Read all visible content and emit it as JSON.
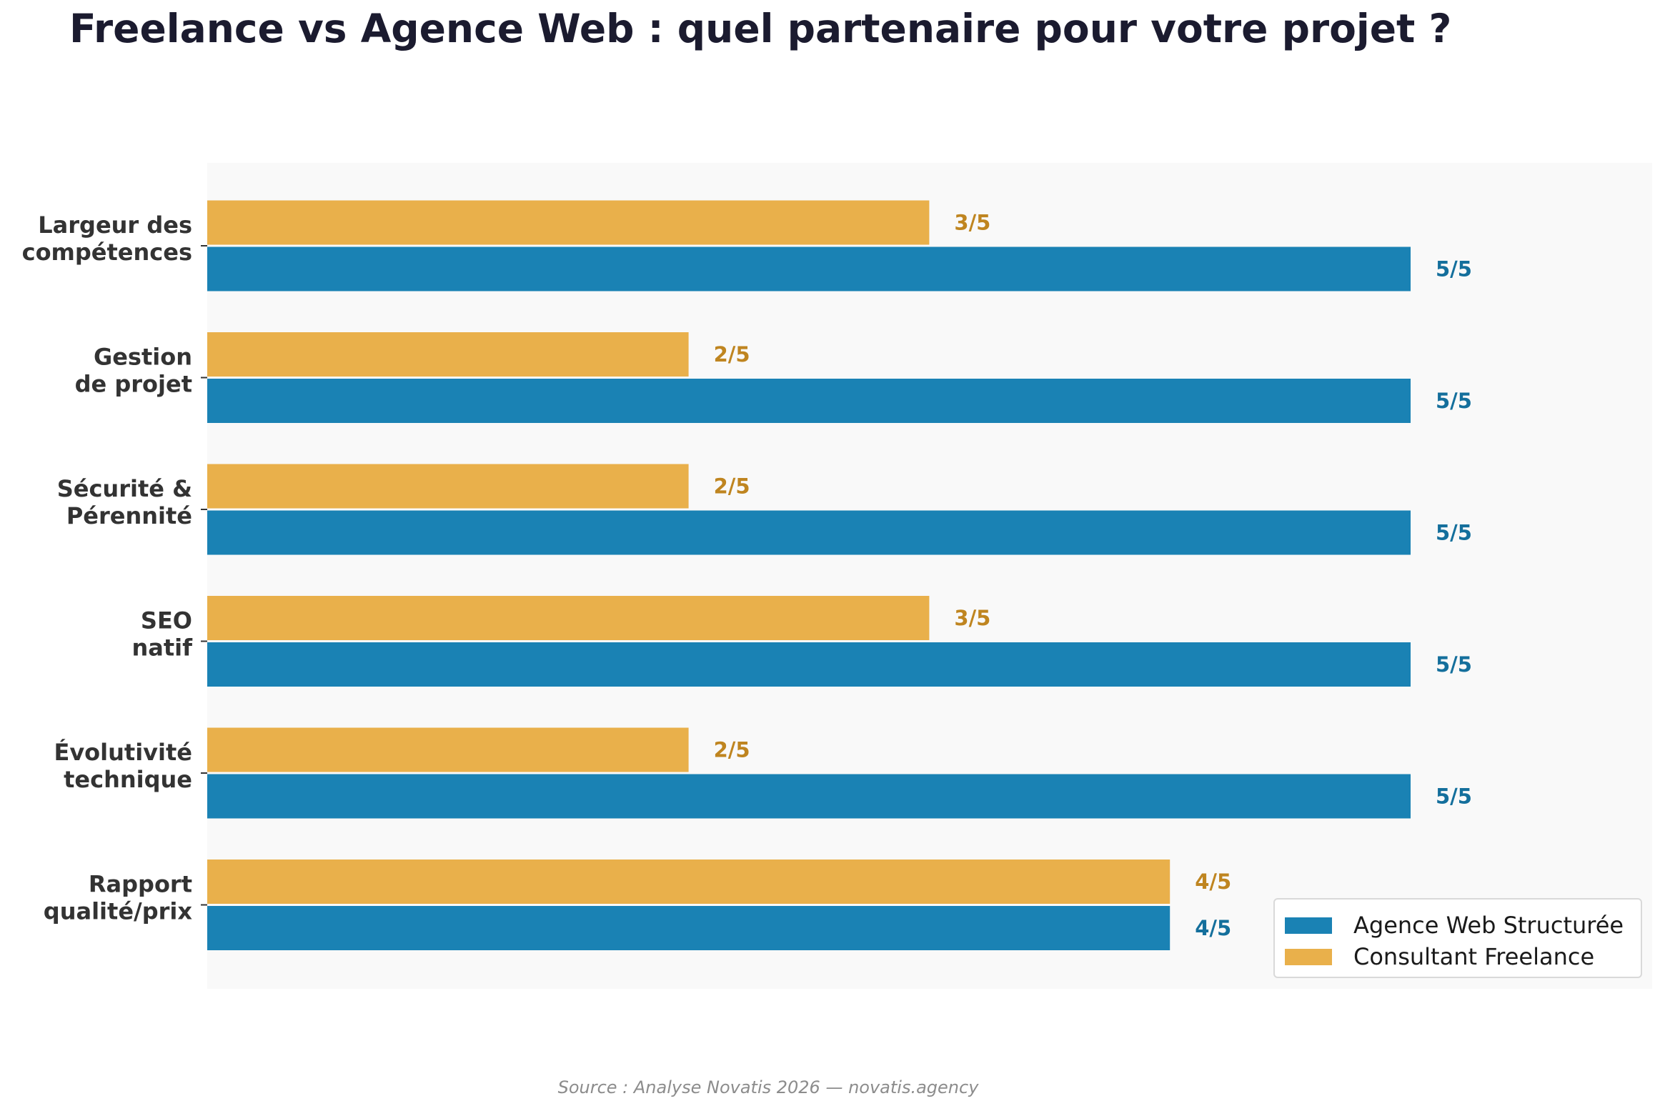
{
  "chart_data": {
    "type": "bar",
    "orientation": "horizontal",
    "title": "Freelance vs Agence Web : quel partenaire pour votre projet ?",
    "categories": [
      [
        "Largeur des",
        "compétences"
      ],
      [
        "Gestion",
        "de projet"
      ],
      [
        "Sécurité &",
        "Pérennité"
      ],
      [
        "SEO",
        "natif"
      ],
      [
        "Évolutivité",
        "technique"
      ],
      [
        "Rapport",
        "qualité/prix"
      ]
    ],
    "xlim": [
      0,
      6
    ],
    "grid": false,
    "legend_position": "bottom-right",
    "series": [
      {
        "name": "Agence Web Structurée",
        "color": "#1a82b4",
        "label_color": "#146f9c",
        "values": [
          5,
          5,
          5,
          5,
          5,
          4
        ],
        "labels": [
          "5/5",
          "5/5",
          "5/5",
          "5/5",
          "5/5",
          "4/5"
        ]
      },
      {
        "name": "Consultant Freelance",
        "color": "#e9b04b",
        "label_color": "#bf8520",
        "values": [
          3,
          2,
          2,
          3,
          2,
          4
        ],
        "labels": [
          "3/5",
          "2/5",
          "2/5",
          "3/5",
          "2/5",
          "4/5"
        ]
      }
    ],
    "source": "Source : Analyse Novatis 2026 — novatis.agency"
  }
}
